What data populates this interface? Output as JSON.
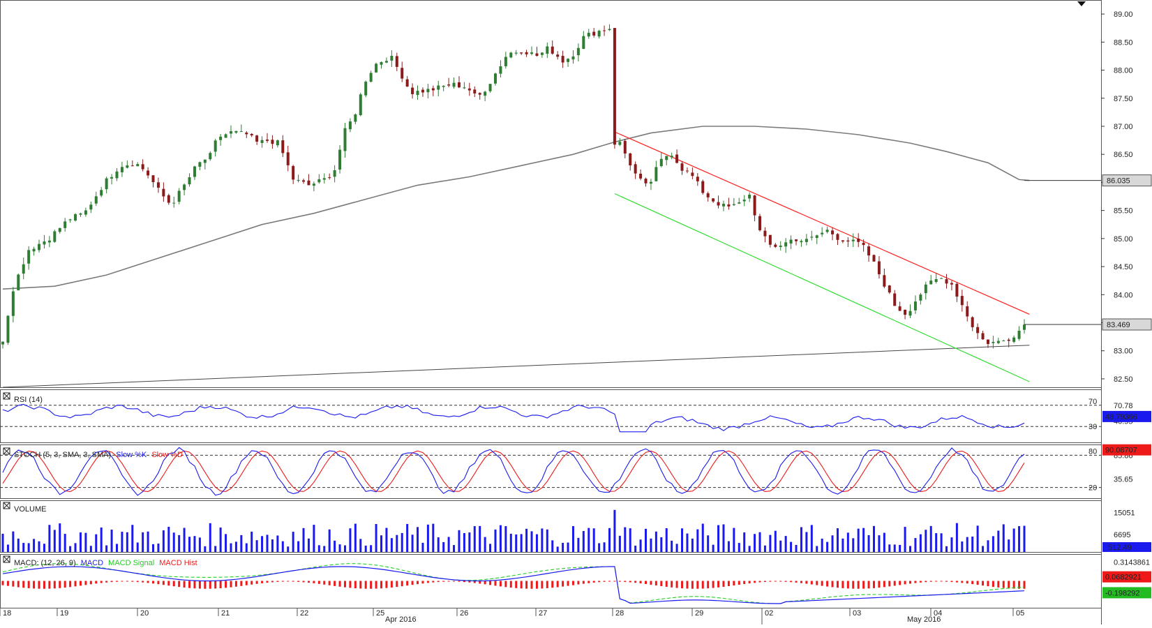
{
  "chart_data": {
    "type": "candlestick",
    "price_panel": {
      "ylim": [
        82.35,
        89.25
      ],
      "y_ticks": [
        "89.00",
        "88.50",
        "88.00",
        "87.50",
        "87.00",
        "86.50",
        "86.00",
        "85.50",
        "85.00",
        "84.50",
        "84.00",
        "83.50",
        "83.00",
        "82.50"
      ],
      "last_price_label": "83.469",
      "sma_label": "86.035",
      "bars": {
        "n": 129,
        "anchors": [
          [
            0,
            83.2
          ],
          [
            2,
            84.1
          ],
          [
            5,
            84.8
          ],
          [
            9,
            85.0
          ],
          [
            13,
            85.35
          ],
          [
            16,
            85.45
          ],
          [
            20,
            86.0
          ],
          [
            23,
            86.3
          ],
          [
            26,
            86.35
          ],
          [
            28,
            86.2
          ],
          [
            31,
            85.8
          ],
          [
            33,
            85.6
          ],
          [
            36,
            86.0
          ],
          [
            38,
            86.3
          ],
          [
            41,
            86.5
          ],
          [
            42,
            86.8
          ],
          [
            45,
            86.9
          ],
          [
            48,
            86.85
          ],
          [
            50,
            86.7
          ],
          [
            52,
            86.75
          ],
          [
            54,
            86.7
          ],
          [
            55,
            86.5
          ],
          [
            57,
            86.05
          ],
          [
            60,
            85.95
          ],
          [
            63,
            86.05
          ],
          [
            65,
            86.2
          ],
          [
            67,
            86.9
          ],
          [
            69,
            87.2
          ],
          [
            71,
            87.8
          ],
          [
            73,
            88.1
          ],
          [
            76,
            88.25
          ],
          [
            78,
            87.95
          ],
          [
            80,
            87.6
          ],
          [
            84,
            87.65
          ],
          [
            88,
            87.75
          ],
          [
            91,
            87.7
          ],
          [
            93,
            87.5
          ],
          [
            95,
            87.7
          ],
          [
            97,
            88.0
          ],
          [
            99,
            88.3
          ],
          [
            102,
            88.35
          ],
          [
            105,
            88.25
          ],
          [
            107,
            88.4
          ],
          [
            110,
            88.15
          ],
          [
            112,
            88.3
          ],
          [
            114,
            88.6
          ],
          [
            117,
            88.7
          ],
          [
            119,
            88.75
          ],
          [
            120,
            86.7
          ]
        ],
        "after_drop_anchors": [
          [
            0,
            86.7
          ],
          [
            3,
            86.1
          ],
          [
            5,
            85.9
          ],
          [
            7,
            86.35
          ],
          [
            9,
            86.55
          ],
          [
            11,
            86.25
          ],
          [
            13,
            86.1
          ],
          [
            15,
            85.8
          ],
          [
            17,
            85.65
          ],
          [
            19,
            85.55
          ],
          [
            21,
            85.6
          ],
          [
            23,
            85.8
          ],
          [
            25,
            85.1
          ],
          [
            27,
            84.85
          ],
          [
            29,
            84.9
          ],
          [
            31,
            85.0
          ],
          [
            33,
            84.95
          ],
          [
            35,
            85.05
          ],
          [
            37,
            85.15
          ],
          [
            39,
            85.0
          ],
          [
            41,
            84.95
          ],
          [
            43,
            84.9
          ],
          [
            45,
            84.6
          ],
          [
            47,
            84.2
          ],
          [
            49,
            83.8
          ],
          [
            51,
            83.65
          ],
          [
            53,
            83.95
          ],
          [
            55,
            84.2
          ],
          [
            57,
            84.3
          ],
          [
            59,
            84.2
          ],
          [
            61,
            83.8
          ],
          [
            63,
            83.4
          ],
          [
            65,
            83.15
          ],
          [
            67,
            83.15
          ],
          [
            69,
            83.2
          ],
          [
            71,
            83.35
          ],
          [
            72,
            83.47
          ]
        ],
        "note_x_last_index": 128
      },
      "sma_series": [
        [
          0,
          84.1
        ],
        [
          10,
          84.15
        ],
        [
          20,
          84.35
        ],
        [
          30,
          84.65
        ],
        [
          40,
          84.95
        ],
        [
          50,
          85.25
        ],
        [
          60,
          85.45
        ],
        [
          70,
          85.7
        ],
        [
          80,
          85.95
        ],
        [
          90,
          86.1
        ],
        [
          100,
          86.3
        ],
        [
          110,
          86.5
        ],
        [
          118,
          86.72
        ],
        [
          125,
          86.88
        ],
        [
          135,
          87.0
        ],
        [
          145,
          87.0
        ],
        [
          155,
          86.95
        ],
        [
          165,
          86.85
        ],
        [
          175,
          86.7
        ],
        [
          182,
          86.55
        ],
        [
          190,
          86.35
        ],
        [
          196,
          86.05
        ],
        [
          198,
          86.035
        ]
      ],
      "lower_trend_line": [
        [
          0,
          82.35
        ],
        [
          198,
          83.1
        ]
      ],
      "channel_upper": [
        [
          118,
          86.9
        ],
        [
          198,
          83.65
        ]
      ],
      "channel_lower": [
        [
          118,
          85.8
        ],
        [
          198,
          82.45
        ]
      ]
    },
    "rsi_panel": {
      "label": "RSI (14)",
      "level_labels": [
        "70",
        "30"
      ],
      "right_labels": [
        "70.78",
        "40.95"
      ],
      "current_value": "48.79366"
    },
    "stoch_panel": {
      "label_prefix": "STOCH (5, 3, SMA, 3, SMA)",
      "legend_k": "Slow %K",
      "legend_d": "Slow %D",
      "level_labels": [
        "80",
        "20"
      ],
      "right_labels": [
        "85.86",
        "35.65"
      ],
      "current_value": "90.08707"
    },
    "volume_panel": {
      "label": "VOLUME",
      "right_labels": [
        "15051",
        "6695"
      ],
      "current_value": "512.49"
    },
    "macd_panel": {
      "label_prefix": "MACD: (12, 26, 9)",
      "legend_macd": "MACD",
      "legend_signal": "MACD Signal",
      "legend_hist": "MACD Hist",
      "right_labels": [
        "0.3143861",
        "0.0682921",
        "-0.198292"
      ]
    },
    "x_axis": {
      "day_labels": [
        "18",
        "19",
        "20",
        "21",
        "22",
        "25",
        "26",
        "27",
        "28",
        "29",
        "02",
        "03",
        "04",
        "05"
      ],
      "month_labels": [
        "Apr 2016",
        "May 2016"
      ]
    }
  },
  "colors": {
    "candle_up": "#2e7d32",
    "candle_down": "#8b1a1a",
    "sma": "#7a7a7a",
    "trend_line": "#444444",
    "channel_upper": "#ff2020",
    "channel_lower": "#33dd33",
    "rsi_line": "#1a1aee",
    "stoch_k": "#1a1aee",
    "stoch_d": "#ee1a1a",
    "volume": "#1a1aee",
    "macd": "#1a1aee",
    "macd_signal": "#22cc22",
    "macd_hist": "#ee1a1a",
    "tag_bg_last": "#d8d8d8",
    "tag_bg_blue": "#1a1aee",
    "tag_bg_red": "#ee1a1a",
    "tag_bg_green": "#22bb22"
  }
}
